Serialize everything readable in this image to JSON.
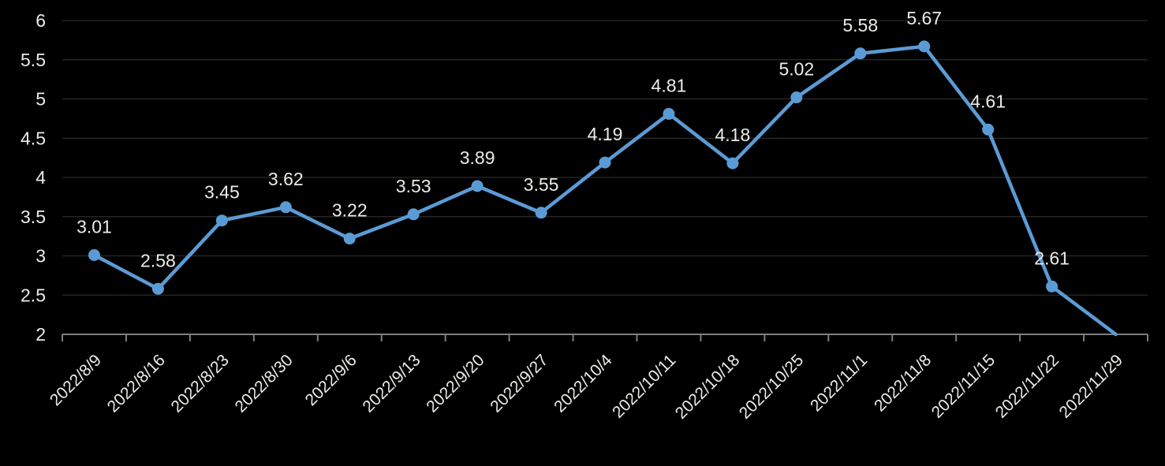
{
  "chart_data": {
    "type": "line",
    "title": "",
    "xlabel": "",
    "ylabel": "",
    "categories": [
      "2022/8/9",
      "2022/8/16",
      "2022/8/23",
      "2022/8/30",
      "2022/9/6",
      "2022/9/13",
      "2022/9/20",
      "2022/9/27",
      "2022/10/4",
      "2022/10/11",
      "2022/10/18",
      "2022/10/25",
      "2022/11/1",
      "2022/11/8",
      "2022/11/15",
      "2022/11/22",
      "2022/11/29"
    ],
    "values": [
      3.01,
      2.58,
      3.45,
      3.62,
      3.22,
      3.53,
      3.89,
      3.55,
      4.19,
      4.81,
      4.18,
      5.02,
      5.58,
      5.67,
      4.61,
      2.61,
      2.0
    ],
    "data_labels": [
      "3.01",
      "2.58",
      "3.45",
      "3.62",
      "3.22",
      "3.53",
      "3.89",
      "3.55",
      "4.19",
      "4.81",
      "4.18",
      "5.02",
      "5.58",
      "5.67",
      "4.61",
      "2.61",
      ""
    ],
    "ylim": [
      2,
      6
    ],
    "yticks": [
      "2",
      "2.5",
      "3",
      "3.5",
      "4",
      "4.5",
      "5",
      "5.5",
      "6"
    ],
    "grid": true,
    "legend": "none",
    "colors": {
      "background": "#000000",
      "series": "#5B9BD5",
      "gridline": "#2B2B2B",
      "axis": "#7F7F7F",
      "text": "#EDEBE7"
    }
  }
}
